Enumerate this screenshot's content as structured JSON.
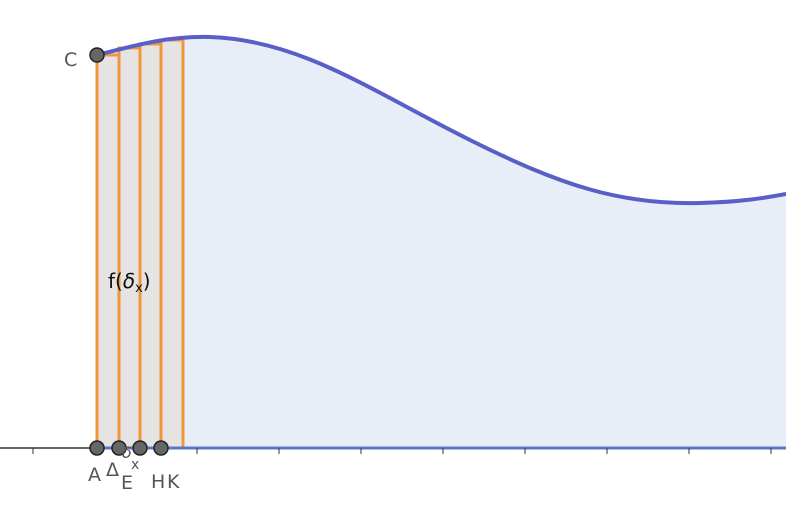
{
  "points": {
    "C": "C",
    "A": "A",
    "E": "E",
    "H": "H",
    "K": "K"
  },
  "labels": {
    "f_of": "f(",
    "delta": "δ",
    "sub_x": "x",
    "close": ")",
    "Delta": "Δ",
    "delta_small": "δ",
    "x_small": "x"
  },
  "colors": {
    "curve": "#5a5fc8",
    "area_fill": "#e8eef8",
    "rect_stroke": "#f0963c",
    "rect_fill": "#e6e4e2",
    "axis": "#333333",
    "x_baseline": "#5a78c8",
    "point_fill": "#666666",
    "point_stroke": "#222222"
  }
}
